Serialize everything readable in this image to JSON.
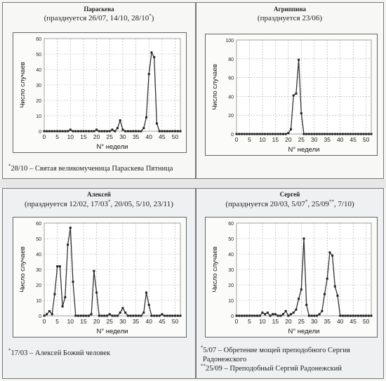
{
  "charts": [
    {
      "name": "Параскева",
      "subtitle": {
        "before": "(празднуется 26/07, 14/10, 28/10",
        "sup1": "*",
        "mid": "",
        "sup2": "",
        "after": ")"
      },
      "note_lines": [
        {
          "sup": "*",
          "text": "28/10 – Святая великомученица Параскева Пятница"
        }
      ]
    },
    {
      "name": "Агриппина",
      "subtitle": {
        "before": "(празднуется 23/06)",
        "sup1": "",
        "mid": "",
        "sup2": "",
        "after": ""
      },
      "note_lines": []
    },
    {
      "name": "Алексей",
      "subtitle": {
        "before": "(празднуется 12/02, 17/03",
        "sup1": "*",
        "mid": ", 20/05, 5/10, 23/11)",
        "sup2": "",
        "after": ""
      },
      "note_lines": [
        {
          "sup": "*",
          "text": "17/03 – Алексей Божий человек"
        }
      ]
    },
    {
      "name": "Сергей",
      "subtitle": {
        "before": "(празднуется 20/03, 5/07",
        "sup1": "*",
        "mid": ", 25/09",
        "sup2": "**",
        "after": ", 7/10)"
      },
      "note_lines": [
        {
          "sup": "*",
          "text": "5/07 – Обретение мощей преподобного Сергия"
        },
        {
          "sup": "",
          "text": "Радонежского"
        },
        {
          "sup": "**",
          "text": "25/09 – Преподобный Сергий Радонежский"
        }
      ]
    }
  ],
  "chart_data": [
    {
      "type": "line",
      "title": "Параскева",
      "xlabel": "N° недели",
      "ylabel": "Число случаев",
      "xlim": [
        0,
        52
      ],
      "ylim": [
        0,
        60
      ],
      "xticks": [
        0,
        5,
        10,
        15,
        20,
        25,
        30,
        35,
        40,
        45,
        50
      ],
      "yticks": [
        0,
        10,
        20,
        30,
        40,
        50,
        60
      ],
      "grid": true,
      "color": "#333333",
      "x": [
        0,
        1,
        2,
        3,
        4,
        5,
        6,
        7,
        8,
        9,
        10,
        11,
        12,
        13,
        14,
        15,
        16,
        17,
        18,
        19,
        20,
        21,
        22,
        23,
        24,
        25,
        26,
        27,
        28,
        29,
        30,
        31,
        32,
        33,
        34,
        35,
        36,
        37,
        38,
        39,
        40,
        41,
        42,
        43,
        44,
        45,
        46,
        47,
        48,
        49,
        50,
        51,
        52
      ],
      "values": [
        0,
        0,
        0,
        0,
        0,
        0,
        0,
        0,
        0,
        0,
        1,
        0,
        0,
        0,
        0,
        0,
        0,
        0,
        0,
        0,
        1,
        0,
        0,
        0,
        0,
        0,
        1,
        0,
        2,
        7,
        1,
        0,
        0,
        0,
        0,
        0,
        0,
        0,
        2,
        9,
        37,
        51,
        48,
        5,
        0,
        0,
        0,
        0,
        0,
        0,
        0,
        0,
        0
      ]
    },
    {
      "type": "line",
      "title": "Агриппина",
      "xlabel": "N° недели",
      "ylabel": "Число случаев",
      "xlim": [
        0,
        52
      ],
      "ylim": [
        0,
        100
      ],
      "xticks": [
        0,
        5,
        10,
        15,
        20,
        25,
        30,
        35,
        40,
        45,
        50
      ],
      "yticks": [
        0,
        20,
        40,
        60,
        80,
        100
      ],
      "grid": true,
      "color": "#333333",
      "x": [
        0,
        1,
        2,
        3,
        4,
        5,
        6,
        7,
        8,
        9,
        10,
        11,
        12,
        13,
        14,
        15,
        16,
        17,
        18,
        19,
        20,
        21,
        22,
        23,
        24,
        25,
        26,
        27,
        28,
        29,
        30,
        31,
        32,
        33,
        34,
        35,
        36,
        37,
        38,
        39,
        40,
        41,
        42,
        43,
        44,
        45,
        46,
        47,
        48,
        49,
        50,
        51,
        52
      ],
      "values": [
        0,
        0,
        0,
        0,
        0,
        0,
        0,
        0,
        0,
        0,
        0,
        0,
        0,
        0,
        0,
        0,
        0,
        0,
        0,
        0,
        1,
        5,
        41,
        43,
        79,
        22,
        0,
        0,
        0,
        0,
        0,
        0,
        0,
        0,
        0,
        0,
        0,
        0,
        0,
        0,
        0,
        0,
        0,
        0,
        0,
        0,
        0,
        0,
        0,
        0,
        0,
        0,
        0
      ]
    },
    {
      "type": "line",
      "title": "Алексей",
      "xlabel": "N° недели",
      "ylabel": "Число случаев",
      "xlim": [
        0,
        52
      ],
      "ylim": [
        0,
        60
      ],
      "xticks": [
        0,
        5,
        10,
        15,
        20,
        25,
        30,
        35,
        40,
        45,
        50
      ],
      "yticks": [
        0,
        10,
        20,
        30,
        40,
        50,
        60
      ],
      "grid": true,
      "color": "#333333",
      "x": [
        0,
        1,
        2,
        3,
        4,
        5,
        6,
        7,
        8,
        9,
        10,
        11,
        12,
        13,
        14,
        15,
        16,
        17,
        18,
        19,
        20,
        21,
        22,
        23,
        24,
        25,
        26,
        27,
        28,
        29,
        30,
        31,
        32,
        33,
        34,
        35,
        36,
        37,
        38,
        39,
        40,
        41,
        42,
        43,
        44,
        45,
        46,
        47,
        48,
        49,
        50,
        51,
        52
      ],
      "values": [
        0,
        1,
        3,
        1,
        14,
        32,
        32,
        6,
        12,
        46,
        57,
        22,
        0,
        0,
        0,
        0,
        0,
        0,
        1,
        29,
        15,
        0,
        0,
        0,
        0,
        1,
        0,
        0,
        0,
        2,
        5,
        2,
        0,
        0,
        0,
        0,
        0,
        0,
        2,
        15,
        7,
        0,
        0,
        0,
        0,
        1,
        0,
        0,
        0,
        0,
        0,
        0,
        0
      ]
    },
    {
      "type": "line",
      "title": "Сергей",
      "xlabel": "N° недели",
      "ylabel": "Число случаев",
      "xlim": [
        0,
        52
      ],
      "ylim": [
        0,
        60
      ],
      "xticks": [
        0,
        5,
        10,
        15,
        20,
        25,
        30,
        35,
        40,
        45,
        50
      ],
      "yticks": [
        0,
        10,
        20,
        30,
        40,
        50,
        60
      ],
      "grid": true,
      "color": "#333333",
      "x": [
        0,
        1,
        2,
        3,
        4,
        5,
        6,
        7,
        8,
        9,
        10,
        11,
        12,
        13,
        14,
        15,
        16,
        17,
        18,
        19,
        20,
        21,
        22,
        23,
        24,
        25,
        26,
        27,
        28,
        29,
        30,
        31,
        32,
        33,
        34,
        35,
        36,
        37,
        38,
        39,
        40,
        41,
        42,
        43,
        44,
        45,
        46,
        47,
        48,
        49,
        50,
        51,
        52
      ],
      "values": [
        0,
        0,
        0,
        0,
        0,
        0,
        0,
        0,
        0,
        0,
        2,
        1,
        2,
        0,
        1,
        1,
        0,
        0,
        1,
        3,
        0,
        1,
        2,
        4,
        11,
        17,
        50,
        7,
        0,
        0,
        0,
        0,
        1,
        3,
        14,
        24,
        41,
        39,
        19,
        13,
        0,
        0,
        0,
        0,
        0,
        0,
        0,
        0,
        0,
        0,
        0,
        0,
        0
      ]
    }
  ]
}
